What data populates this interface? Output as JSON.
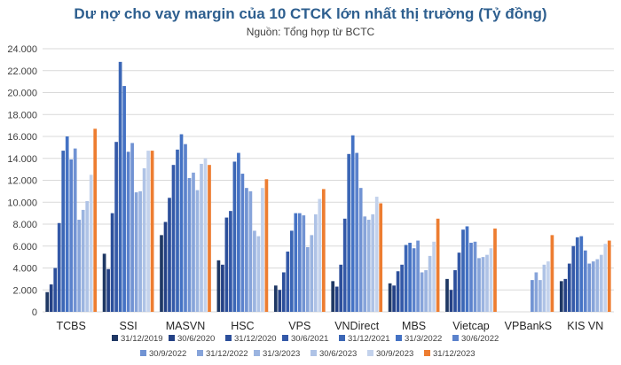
{
  "chart_data": {
    "type": "bar",
    "title": "Dư nợ cho vay margin của 10 CTCK lớn nhất thị trường (Tỷ đồng)",
    "subtitle": "Nguồn: Tổng hợp từ BCTC",
    "ylim": [
      0,
      24000
    ],
    "yticks": [
      "0",
      "2.000",
      "4.000",
      "6.000",
      "8.000",
      "10.000",
      "12.000",
      "14.000",
      "16.000",
      "18.000",
      "20.000",
      "22.000",
      "24.000"
    ],
    "grid": true,
    "legend_position": "bottom",
    "categories": [
      "TCBS",
      "SSI",
      "MASVN",
      "HSC",
      "VPS",
      "VNDirect",
      "MBS",
      "Vietcap",
      "VPBankS",
      "KIS VN"
    ],
    "series": [
      {
        "name": "31/12/2019",
        "color": "#1f3864",
        "values": [
          1800,
          5300,
          7000,
          4700,
          2400,
          2800,
          2600,
          3000,
          0,
          2800
        ]
      },
      {
        "name": "30/6/2020",
        "color": "#244185",
        "values": [
          2500,
          3900,
          8200,
          4300,
          2000,
          2300,
          2400,
          2000,
          0,
          3000
        ]
      },
      {
        "name": "31/12/2020",
        "color": "#2c4f9b",
        "values": [
          4000,
          9000,
          10400,
          8600,
          3600,
          4300,
          3700,
          3800,
          0,
          4400
        ]
      },
      {
        "name": "30/6/2021",
        "color": "#3459a8",
        "values": [
          8100,
          15500,
          13400,
          9200,
          5500,
          8500,
          4300,
          5400,
          0,
          6000
        ]
      },
      {
        "name": "31/12/2021",
        "color": "#3b66b5",
        "values": [
          14700,
          22800,
          14800,
          13700,
          7400,
          14400,
          6100,
          7500,
          0,
          6800
        ]
      },
      {
        "name": "31/3/2022",
        "color": "#4472c4",
        "values": [
          16000,
          20600,
          16200,
          14500,
          9000,
          16100,
          6300,
          7800,
          0,
          6900
        ]
      },
      {
        "name": "30/6/2022",
        "color": "#5b82cc",
        "values": [
          13900,
          14600,
          15300,
          12600,
          9000,
          14500,
          5800,
          6300,
          0,
          5600
        ]
      },
      {
        "name": "30/9/2022",
        "color": "#7193d3",
        "values": [
          14900,
          15400,
          12200,
          11300,
          8800,
          11300,
          6500,
          6400,
          2900,
          4400
        ]
      },
      {
        "name": "31/12/2022",
        "color": "#87a4da",
        "values": [
          8400,
          10900,
          12700,
          11000,
          5900,
          8700,
          3600,
          4900,
          3600,
          4600
        ]
      },
      {
        "name": "31/3/2023",
        "color": "#9bb4e0",
        "values": [
          9300,
          11000,
          11100,
          7400,
          7000,
          8400,
          3800,
          5000,
          2900,
          4800
        ]
      },
      {
        "name": "30/6/2023",
        "color": "#afc3e6",
        "values": [
          10100,
          13100,
          13500,
          6900,
          8900,
          8900,
          5100,
          5200,
          4300,
          5200
        ]
      },
      {
        "name": "30/9/2023",
        "color": "#c3d2ec",
        "values": [
          12500,
          14700,
          14000,
          11300,
          10300,
          10500,
          6400,
          5800,
          4600,
          6200
        ]
      },
      {
        "name": "31/12/2023",
        "color": "#ed7d31",
        "values": [
          16700,
          14700,
          13400,
          12100,
          11200,
          9900,
          8500,
          7600,
          7000,
          6500
        ]
      }
    ]
  }
}
